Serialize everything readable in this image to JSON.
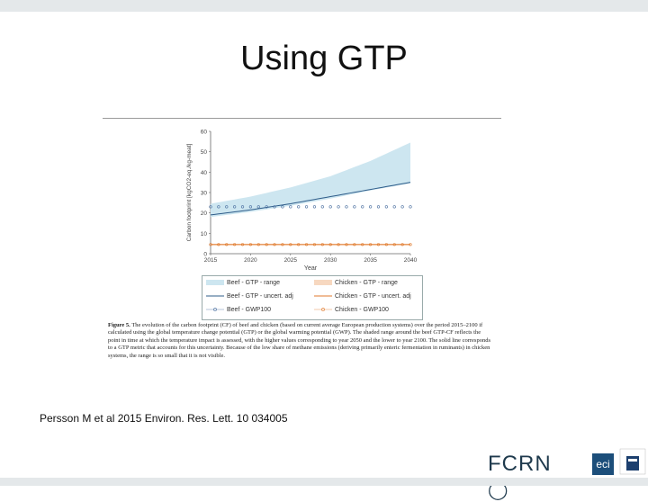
{
  "slide": {
    "title": "Using GTP",
    "citation": "Persson M et al 2015 Environ. Res. Lett. 10 034005"
  },
  "caption": {
    "label": "Figure 5.",
    "text": "The evolution of the carbon footprint (CF) of beef and chicken (based on current average European production systems) over the period 2015–2100 if calculated using the global temperature change potential (GTP) or the global warming potential (GWP). The shaded range around the beef GTP-CF reflects the point in time at which the temperature impact is assessed, with the higher values corresponding to year 2050 and the lower to year 2100. The solid line corresponds to a GTP metric that accounts for this uncertainty. Because of the low share of methane emissions (deriving primarily enteric fermentation in ruminants) in chicken systems, the range is so small that it is not visible."
  },
  "logos": {
    "fcrn": "FCRN",
    "eci": "eci",
    "oxford": "University of Oxford"
  },
  "colors": {
    "beef_range": "#cde6f0",
    "beef_line": "#2f5d8a",
    "beef_gwp": "#4a6fa0",
    "chicken_line": "#e07a2c",
    "chicken_gwp": "#e07a2c"
  },
  "chart_data": {
    "type": "line",
    "ylabel": "Carbon footprint [kgCO2-eq./kg-meat]",
    "xlabel": "Year",
    "xlim": [
      2015,
      2040
    ],
    "ylim": [
      0,
      60
    ],
    "x_ticks": [
      2015,
      2020,
      2025,
      2030,
      2035,
      2040
    ],
    "y_ticks": [
      0,
      10,
      20,
      30,
      40,
      50,
      60
    ],
    "grid": false,
    "legend_position": "bottom",
    "x": [
      2015,
      2020,
      2025,
      2030,
      2035,
      2040
    ],
    "series": [
      {
        "name": "Beef - GTP - range",
        "type": "area",
        "lower": [
          18,
          20.5,
          23.5,
          27,
          31,
          34.5
        ],
        "upper": [
          24.5,
          28,
          32.5,
          38,
          45.5,
          54.5
        ]
      },
      {
        "name": "Beef - GTP - uncert. adj",
        "type": "line",
        "values": [
          19,
          21.5,
          24.5,
          28,
          31.5,
          35
        ]
      },
      {
        "name": "Beef - GWP100",
        "type": "markers",
        "values": [
          23,
          23,
          23,
          23,
          23,
          23
        ]
      },
      {
        "name": "Chicken - GTP - range",
        "type": "area",
        "lower": [
          4.5,
          4.5,
          4.5,
          4.5,
          4.5,
          4.5
        ],
        "upper": [
          4.5,
          4.5,
          4.5,
          4.5,
          4.5,
          4.5
        ]
      },
      {
        "name": "Chicken - GTP - uncert. adj",
        "type": "line",
        "values": [
          4.5,
          4.5,
          4.5,
          4.5,
          4.5,
          4.5
        ]
      },
      {
        "name": "Chicken - GWP100",
        "type": "markers",
        "values": [
          4.5,
          4.5,
          4.5,
          4.5,
          4.5,
          4.5
        ]
      }
    ]
  }
}
